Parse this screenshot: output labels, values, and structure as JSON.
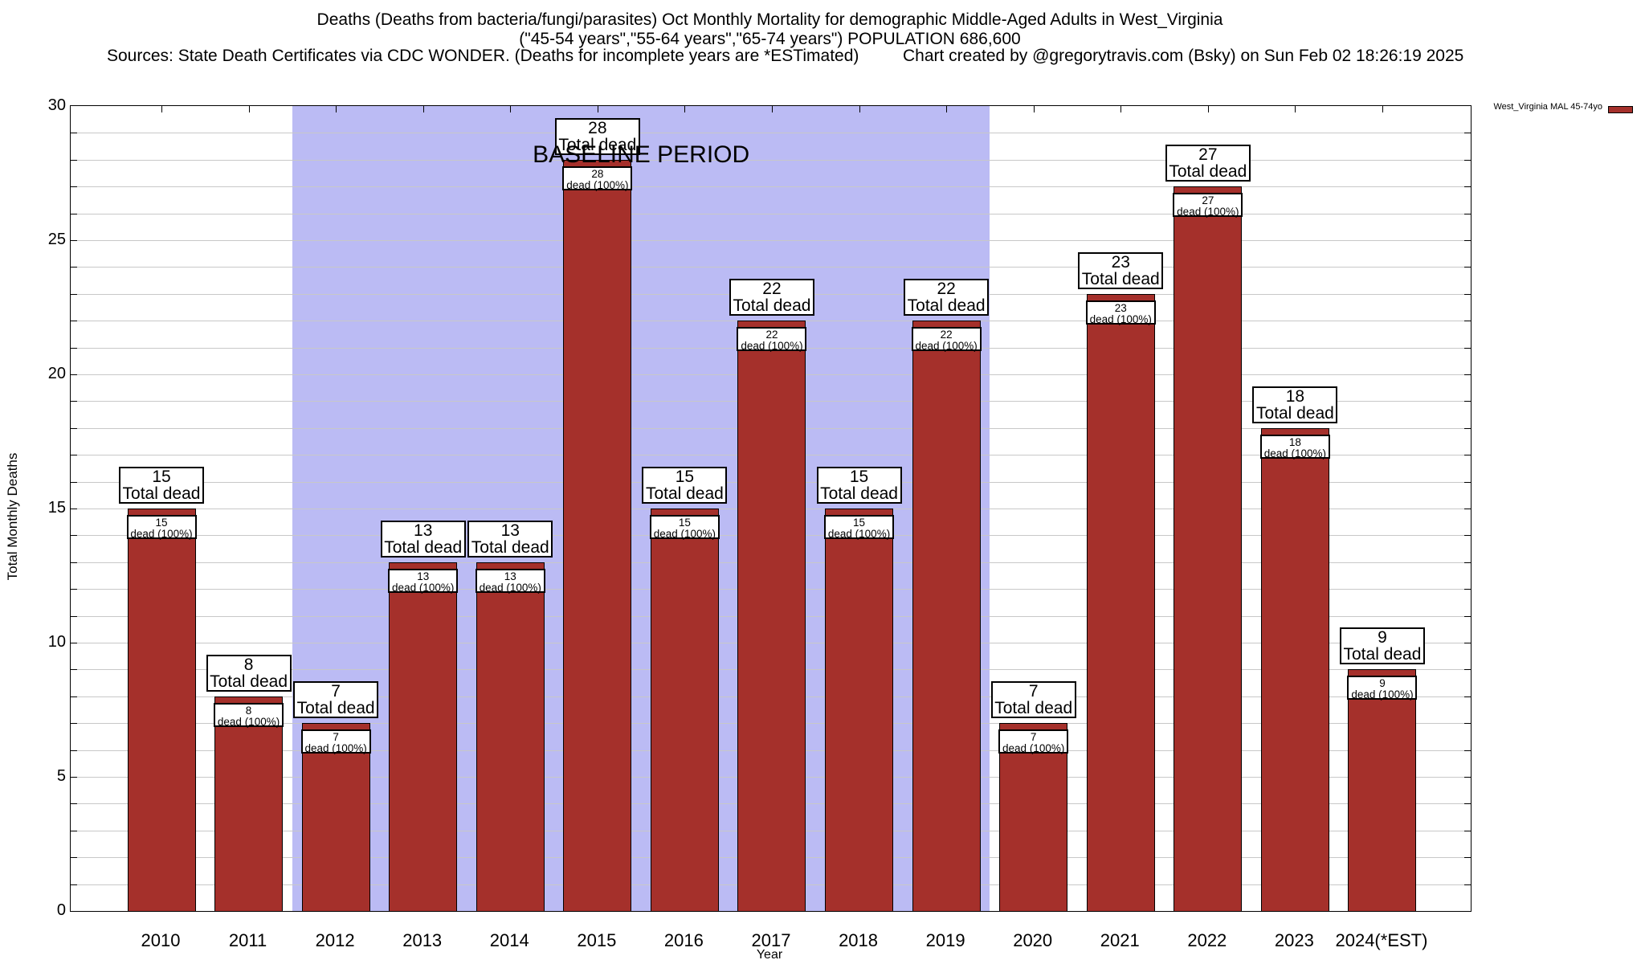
{
  "header": {
    "title_line1": "Deaths (Deaths from bacteria/fungi/parasites) Oct Monthly Mortality for demographic Middle-Aged Adults in West_Virginia",
    "title_line2": "(\"45-54 years\",\"55-64 years\",\"65-74 years\") POPULATION 686,600",
    "sources": "Sources: State Death Certificates via CDC WONDER. (Deaths for incomplete years are *ESTimated)",
    "credit": "Chart created by @gregorytravis.com (Bsky) on Sun Feb 02 18:26:19 2025"
  },
  "legend": {
    "label": "West_Virginia MAL 45-74yo",
    "swatch_color": "#A5302B"
  },
  "chart_data": {
    "type": "bar",
    "title": "Deaths (Deaths from bacteria/fungi/parasites) Oct Monthly Mortality for demographic Middle-Aged Adults in West_Virginia",
    "xlabel": "Year",
    "ylabel": "Total Monthly Deaths",
    "ylim": [
      0,
      30
    ],
    "ytick_interval": 5,
    "yticks": [
      0,
      5,
      10,
      15,
      20,
      25,
      30
    ],
    "grid": true,
    "legend_position": "top-right",
    "categories": [
      "2010",
      "2011",
      "2012",
      "2013",
      "2014",
      "2015",
      "2016",
      "2017",
      "2018",
      "2019",
      "2020",
      "2021",
      "2022",
      "2023",
      "2024(*EST)"
    ],
    "series": [
      {
        "name": "West_Virginia MAL 45-74yo",
        "values": [
          15,
          8,
          7,
          13,
          13,
          28,
          15,
          22,
          15,
          22,
          7,
          23,
          27,
          18,
          9
        ]
      }
    ],
    "bar_color": "#A5302B",
    "gridline_color": "#c8c8c8",
    "bar_top_label_suffix": "Total dead",
    "bar_inner_label_suffix": "dead (100%)",
    "baseline_band": {
      "label": "BASELINE PERIOD",
      "start_category": "2012",
      "end_category": "2019",
      "color": "#BBBBF4"
    }
  }
}
